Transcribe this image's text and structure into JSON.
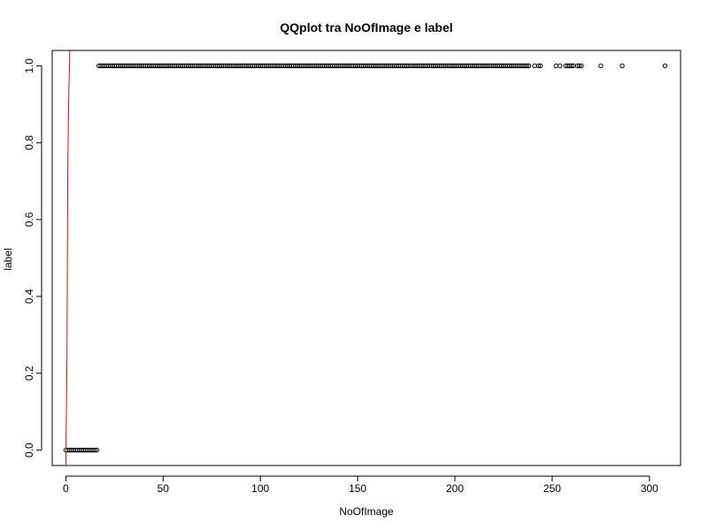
{
  "chart_data": {
    "type": "scatter",
    "title": "QQplot tra NoOfImage e label",
    "xlabel": "NoOfImage",
    "ylabel": "label",
    "xlim": [
      -7,
      316
    ],
    "ylim": [
      -0.04,
      1.04
    ],
    "x_ticks": [
      0,
      50,
      100,
      150,
      200,
      250,
      300
    ],
    "x_tick_labels": [
      "0",
      "50",
      "100",
      "150",
      "200",
      "250",
      "300"
    ],
    "y_ticks": [
      0.0,
      0.2,
      0.4,
      0.6,
      0.8,
      1.0
    ],
    "y_tick_labels": [
      "0.0",
      "0.2",
      "0.4",
      "0.6",
      "0.8",
      "1.0"
    ],
    "grid": false,
    "legend": "none",
    "colors": {
      "points": "#000000",
      "line": "#ff0000"
    },
    "series": [
      {
        "type": "points",
        "marker": "open-circle",
        "x": [
          0,
          1,
          2,
          3,
          4,
          5,
          6,
          7,
          8,
          9,
          10,
          11,
          12,
          13,
          14,
          15,
          16,
          17,
          18,
          19,
          20,
          21,
          22,
          23,
          24,
          25,
          26,
          27,
          28,
          29,
          30,
          31,
          32,
          33,
          34,
          35,
          36,
          37,
          38,
          39,
          40,
          41,
          42,
          43,
          44,
          45,
          46,
          47,
          48,
          49,
          50,
          51,
          52,
          53,
          54,
          55,
          56,
          57,
          58,
          59,
          60,
          61,
          62,
          63,
          64,
          65,
          66,
          67,
          68,
          69,
          70,
          71,
          72,
          73,
          74,
          75,
          76,
          77,
          78,
          79,
          80,
          81,
          82,
          83,
          84,
          85,
          86,
          87,
          88,
          89,
          90,
          91,
          92,
          93,
          94,
          95,
          96,
          97,
          98,
          99,
          100,
          101,
          102,
          103,
          104,
          105,
          106,
          107,
          108,
          109,
          110,
          111,
          112,
          113,
          114,
          115,
          116,
          117,
          118,
          119,
          120,
          121,
          122,
          123,
          124,
          125,
          126,
          127,
          128,
          129,
          130,
          131,
          132,
          133,
          134,
          135,
          136,
          137,
          138,
          139,
          140,
          141,
          142,
          143,
          144,
          145,
          146,
          147,
          148,
          149,
          150,
          151,
          152,
          153,
          154,
          155,
          156,
          157,
          158,
          159,
          160,
          161,
          162,
          163,
          164,
          165,
          166,
          167,
          168,
          169,
          170,
          171,
          172,
          173,
          174,
          175,
          176,
          177,
          178,
          179,
          180,
          181,
          182,
          183,
          184,
          185,
          186,
          187,
          188,
          189,
          190,
          191,
          192,
          193,
          194,
          195,
          196,
          197,
          198,
          199,
          200,
          201,
          202,
          203,
          204,
          205,
          206,
          207,
          208,
          209,
          210,
          211,
          212,
          213,
          214,
          215,
          216,
          217,
          218,
          219,
          220,
          221,
          222,
          223,
          224,
          225,
          226,
          227,
          228,
          229,
          230,
          231,
          232,
          233,
          234,
          235,
          236,
          237,
          238,
          241,
          243,
          244,
          252,
          254,
          257,
          258,
          259,
          260,
          261,
          263,
          264,
          265,
          275,
          286,
          308
        ],
        "y": [
          0,
          0,
          0,
          0,
          0,
          0,
          0,
          0,
          0,
          0,
          0,
          0,
          0,
          0,
          0,
          0,
          0,
          1,
          1,
          1,
          1,
          1,
          1,
          1,
          1,
          1,
          1,
          1,
          1,
          1,
          1,
          1,
          1,
          1,
          1,
          1,
          1,
          1,
          1,
          1,
          1,
          1,
          1,
          1,
          1,
          1,
          1,
          1,
          1,
          1,
          1,
          1,
          1,
          1,
          1,
          1,
          1,
          1,
          1,
          1,
          1,
          1,
          1,
          1,
          1,
          1,
          1,
          1,
          1,
          1,
          1,
          1,
          1,
          1,
          1,
          1,
          1,
          1,
          1,
          1,
          1,
          1,
          1,
          1,
          1,
          1,
          1,
          1,
          1,
          1,
          1,
          1,
          1,
          1,
          1,
          1,
          1,
          1,
          1,
          1,
          1,
          1,
          1,
          1,
          1,
          1,
          1,
          1,
          1,
          1,
          1,
          1,
          1,
          1,
          1,
          1,
          1,
          1,
          1,
          1,
          1,
          1,
          1,
          1,
          1,
          1,
          1,
          1,
          1,
          1,
          1,
          1,
          1,
          1,
          1,
          1,
          1,
          1,
          1,
          1,
          1,
          1,
          1,
          1,
          1,
          1,
          1,
          1,
          1,
          1,
          1,
          1,
          1,
          1,
          1,
          1,
          1,
          1,
          1,
          1,
          1,
          1,
          1,
          1,
          1,
          1,
          1,
          1,
          1,
          1,
          1,
          1,
          1,
          1,
          1,
          1,
          1,
          1,
          1,
          1,
          1,
          1,
          1,
          1,
          1,
          1,
          1,
          1,
          1,
          1,
          1,
          1,
          1,
          1,
          1,
          1,
          1,
          1,
          1,
          1,
          1,
          1,
          1,
          1,
          1,
          1,
          1,
          1,
          1,
          1,
          1,
          1,
          1,
          1,
          1,
          1,
          1,
          1,
          1,
          1,
          1,
          1,
          1,
          1,
          1,
          1,
          1,
          1,
          1,
          1,
          1,
          1,
          1,
          1,
          1,
          1,
          1,
          1,
          1,
          1,
          1,
          1,
          1,
          1,
          1,
          1,
          1,
          1,
          1,
          1,
          1,
          1,
          1,
          1,
          1
        ]
      },
      {
        "type": "line",
        "x": [
          0.0,
          0.6,
          0.8,
          1.0,
          1.3,
          1.6,
          1.9,
          2.0
        ],
        "y": [
          -0.04,
          0.25,
          0.5,
          0.72,
          0.85,
          0.95,
          1.0,
          1.04
        ]
      }
    ]
  }
}
